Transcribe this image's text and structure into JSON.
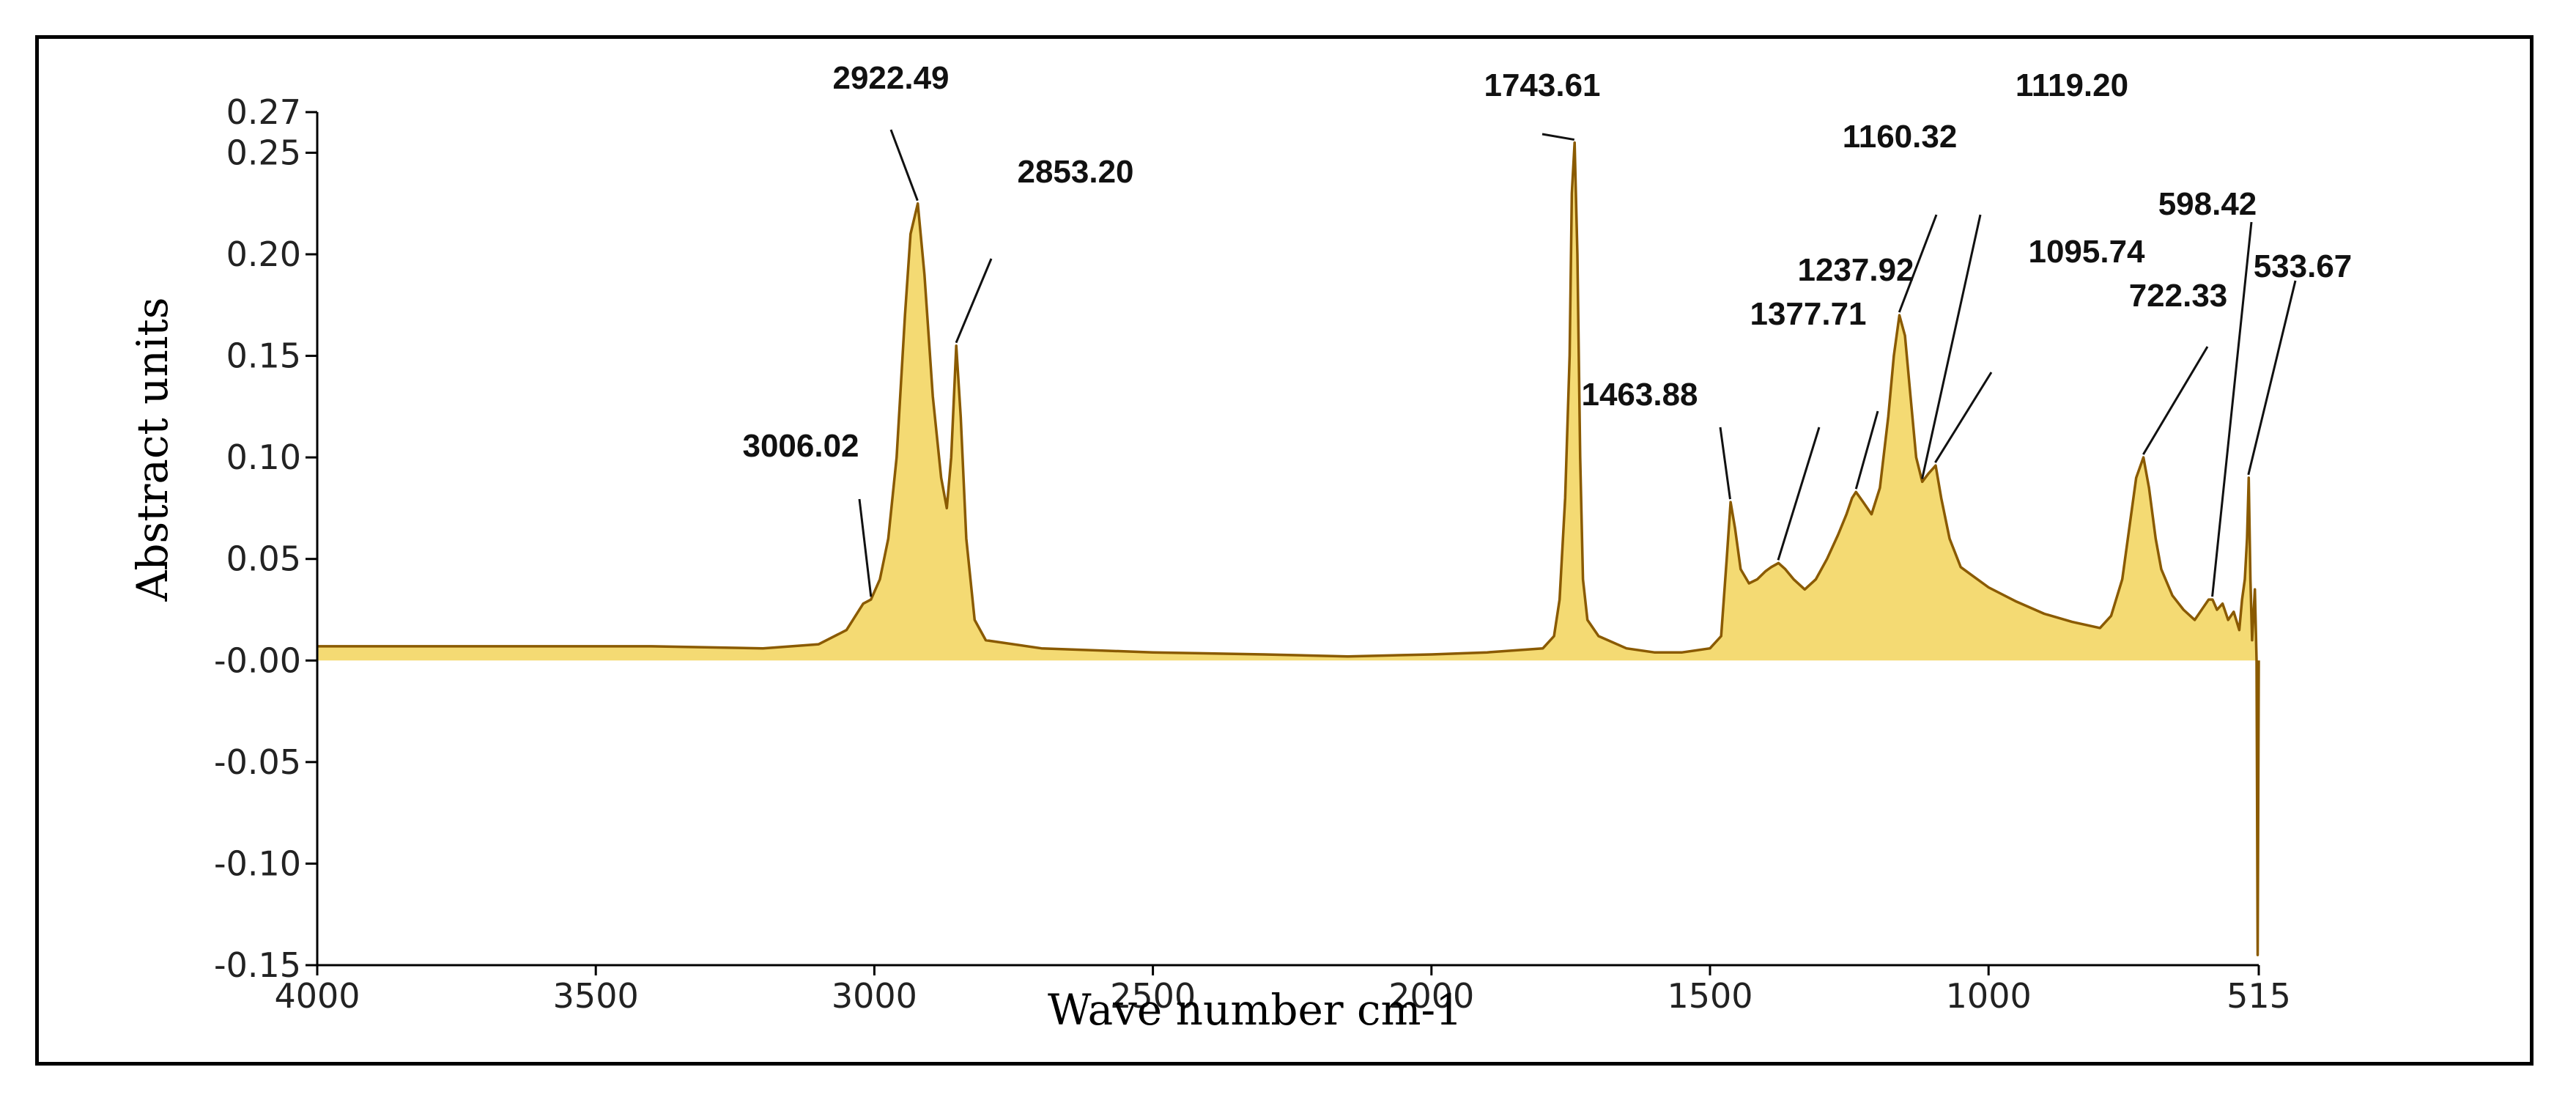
{
  "chart_data": {
    "type": "line",
    "title": "",
    "xlabel": "Wave number cm-1",
    "ylabel": "Abstract units",
    "xlim": [
      4000,
      515
    ],
    "ylim": [
      -0.15,
      0.27
    ],
    "x_reversed": true,
    "grid": false,
    "legend": "none",
    "line_color": "#8a5a00",
    "fill_color": "#f2d35a",
    "x_ticks": [
      {
        "value": 4000,
        "label": "4000"
      },
      {
        "value": 3500,
        "label": "3500"
      },
      {
        "value": 3000,
        "label": "3000"
      },
      {
        "value": 2500,
        "label": "2500"
      },
      {
        "value": 2000,
        "label": "2000"
      },
      {
        "value": 1500,
        "label": "1500"
      },
      {
        "value": 1000,
        "label": "1000"
      },
      {
        "value": 515,
        "label": "515"
      }
    ],
    "y_ticks": [
      {
        "value": 0.27,
        "label": "0.27"
      },
      {
        "value": 0.25,
        "label": "0.25"
      },
      {
        "value": 0.2,
        "label": "0.20"
      },
      {
        "value": 0.15,
        "label": "0.15"
      },
      {
        "value": 0.1,
        "label": "0.10"
      },
      {
        "value": 0.05,
        "label": "0.05"
      },
      {
        "value": 0.0,
        "label": "-0.00"
      },
      {
        "value": -0.05,
        "label": "-0.05"
      },
      {
        "value": -0.1,
        "label": "-0.10"
      },
      {
        "value": -0.15,
        "label": "-0.15"
      }
    ],
    "series": [
      {
        "x": [
          4000,
          3700,
          3400,
          3200,
          3100,
          3050,
          3020,
          3006,
          2990,
          2975,
          2960,
          2945,
          2935,
          2922,
          2910,
          2895,
          2880,
          2870,
          2862,
          2853,
          2845,
          2835,
          2820,
          2800,
          2700,
          2500,
          2300,
          2150,
          2000,
          1900,
          1800,
          1780,
          1770,
          1760,
          1752,
          1748,
          1743,
          1738,
          1733,
          1728,
          1720,
          1700,
          1650,
          1600,
          1550,
          1500,
          1480,
          1470,
          1463,
          1455,
          1445,
          1430,
          1415,
          1400,
          1390,
          1377,
          1365,
          1350,
          1330,
          1310,
          1290,
          1270,
          1255,
          1245,
          1238,
          1225,
          1210,
          1195,
          1180,
          1170,
          1160,
          1150,
          1140,
          1130,
          1119,
          1108,
          1095,
          1085,
          1070,
          1050,
          1030,
          1000,
          950,
          900,
          850,
          800,
          780,
          760,
          745,
          735,
          722,
          712,
          700,
          690,
          670,
          650,
          630,
          615,
          605,
          598,
          590,
          580,
          570,
          560,
          550,
          545,
          540,
          536,
          533,
          530,
          527,
          522,
          519,
          517,
          515
        ],
        "y": [
          0.007,
          0.007,
          0.007,
          0.006,
          0.008,
          0.015,
          0.028,
          0.03,
          0.04,
          0.06,
          0.1,
          0.17,
          0.21,
          0.225,
          0.19,
          0.13,
          0.09,
          0.075,
          0.1,
          0.155,
          0.12,
          0.06,
          0.02,
          0.01,
          0.006,
          0.004,
          0.003,
          0.002,
          0.003,
          0.004,
          0.006,
          0.012,
          0.03,
          0.08,
          0.15,
          0.23,
          0.255,
          0.2,
          0.1,
          0.04,
          0.02,
          0.012,
          0.006,
          0.004,
          0.004,
          0.006,
          0.012,
          0.05,
          0.078,
          0.065,
          0.045,
          0.038,
          0.04,
          0.044,
          0.046,
          0.048,
          0.045,
          0.04,
          0.035,
          0.04,
          0.05,
          0.062,
          0.072,
          0.08,
          0.083,
          0.078,
          0.072,
          0.085,
          0.12,
          0.15,
          0.17,
          0.16,
          0.13,
          0.1,
          0.088,
          0.092,
          0.096,
          0.08,
          0.06,
          0.046,
          0.042,
          0.036,
          0.029,
          0.023,
          0.019,
          0.016,
          0.022,
          0.04,
          0.07,
          0.09,
          0.1,
          0.085,
          0.06,
          0.045,
          0.032,
          0.025,
          0.02,
          0.026,
          0.03,
          0.03,
          0.025,
          0.028,
          0.02,
          0.024,
          0.015,
          0.03,
          0.04,
          0.06,
          0.09,
          0.04,
          0.01,
          0.035,
          0.0,
          -0.145,
          0.0
        ]
      }
    ],
    "annotations": [
      {
        "text": "2922.49",
        "x": 2922.49,
        "y": 0.225
      },
      {
        "text": "2853.20",
        "x": 2853.2,
        "y": 0.155
      },
      {
        "text": "3006.02",
        "x": 3006.02,
        "y": 0.03
      },
      {
        "text": "1743.61",
        "x": 1743.61,
        "y": 0.255
      },
      {
        "text": "1463.88",
        "x": 1463.88,
        "y": 0.078
      },
      {
        "text": "1377.71",
        "x": 1377.71,
        "y": 0.048
      },
      {
        "text": "1237.92",
        "x": 1237.92,
        "y": 0.083
      },
      {
        "text": "1160.32",
        "x": 1160.32,
        "y": 0.17
      },
      {
        "text": "1119.20",
        "x": 1119.2,
        "y": 0.088
      },
      {
        "text": "1095.74",
        "x": 1095.74,
        "y": 0.096
      },
      {
        "text": "722.33",
        "x": 722.33,
        "y": 0.1
      },
      {
        "text": "598.42",
        "x": 598.42,
        "y": 0.03
      },
      {
        "text": "533.67",
        "x": 533.67,
        "y": 0.09
      }
    ]
  }
}
